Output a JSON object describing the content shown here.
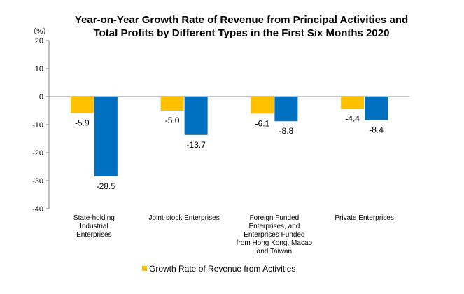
{
  "chart_data": {
    "type": "bar",
    "title_lines": [
      "Year-on-Year Growth Rate of Revenue from Principal Activities  and",
      "Total Profits  by Different Types in the First Six Months 2020"
    ],
    "unit_label": "（%）",
    "categories": [
      [
        "State-holding",
        "Industrial",
        "Enterprises"
      ],
      [
        "Joint-stock Enterprises"
      ],
      [
        "Foreign Funded",
        "Enterprises, and",
        "Enterprises Funded",
        "from Hong Kong, Macao",
        "and Taiwan"
      ],
      [
        "Private Enterprises"
      ]
    ],
    "series": [
      {
        "name": "Growth Rate of Revenue from Activities",
        "values": [
          -5.9,
          -5.0,
          -6.1,
          -4.4
        ],
        "color": "#FFC000"
      },
      {
        "values": [
          -28.5,
          -13.7,
          -8.8,
          -8.4
        ],
        "color": "#0070C0"
      }
    ],
    "ylim": [
      -40,
      20
    ],
    "yticks": [
      20,
      10,
      0,
      -10,
      -20,
      -30,
      -40
    ],
    "legend_position": "bottom-left",
    "grid": false
  }
}
